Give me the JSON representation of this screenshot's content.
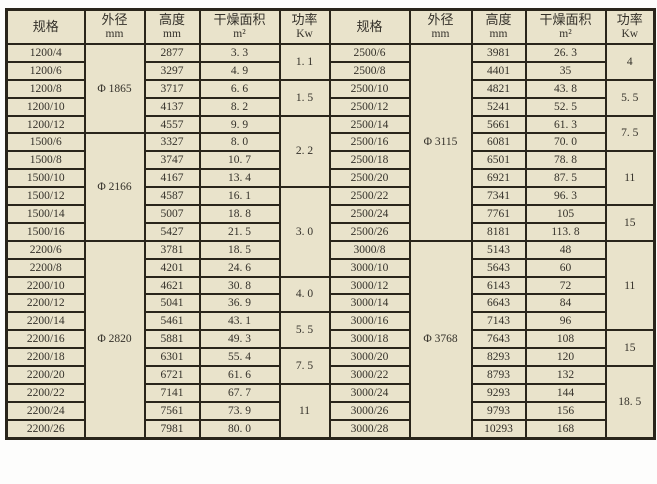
{
  "colors": {
    "cell_background": "#e9e3cb",
    "border": "#29251b",
    "text": "#34312a",
    "page_background": "#fdfdfc"
  },
  "table": {
    "headers": {
      "spec": "规格",
      "diameter": "外径",
      "diameter_unit": "mm",
      "height": "高度",
      "height_unit": "mm",
      "area": "干燥面积",
      "area_unit": "m²",
      "power": "功率",
      "power_unit": "Kw"
    },
    "halves": [
      {
        "rows": [
          {
            "spec": "1200/4",
            "height": "2877",
            "area": "3. 3"
          },
          {
            "spec": "1200/6",
            "height": "3297",
            "area": "4. 9"
          },
          {
            "spec": "1200/8",
            "height": "3717",
            "area": "6. 6"
          },
          {
            "spec": "1200/10",
            "height": "4137",
            "area": "8. 2"
          },
          {
            "spec": "1200/12",
            "height": "4557",
            "area": "9. 9"
          },
          {
            "spec": "1500/6",
            "height": "3327",
            "area": "8. 0"
          },
          {
            "spec": "1500/8",
            "height": "3747",
            "area": "10. 7"
          },
          {
            "spec": "1500/10",
            "height": "4167",
            "area": "13. 4"
          },
          {
            "spec": "1500/12",
            "height": "4587",
            "area": "16. 1"
          },
          {
            "spec": "1500/14",
            "height": "5007",
            "area": "18. 8"
          },
          {
            "spec": "1500/16",
            "height": "5427",
            "area": "21. 5"
          },
          {
            "spec": "2200/6",
            "height": "3781",
            "area": "18. 5"
          },
          {
            "spec": "2200/8",
            "height": "4201",
            "area": "24. 6"
          },
          {
            "spec": "2200/10",
            "height": "4621",
            "area": "30. 8"
          },
          {
            "spec": "2200/12",
            "height": "5041",
            "area": "36. 9"
          },
          {
            "spec": "2200/14",
            "height": "5461",
            "area": "43. 1"
          },
          {
            "spec": "2200/16",
            "height": "5881",
            "area": "49. 3"
          },
          {
            "spec": "2200/18",
            "height": "6301",
            "area": "55. 4"
          },
          {
            "spec": "2200/20",
            "height": "6721",
            "area": "61. 6"
          },
          {
            "spec": "2200/22",
            "height": "7141",
            "area": "67. 7"
          },
          {
            "spec": "2200/24",
            "height": "7561",
            "area": "73. 9"
          },
          {
            "spec": "2200/26",
            "height": "7981",
            "area": "80. 0"
          }
        ],
        "diameter_groups": [
          {
            "label": "Φ 1865",
            "span": 5
          },
          {
            "label": "Φ 2166",
            "span": 6
          },
          {
            "label": "Φ 2820",
            "span": 11
          }
        ],
        "power_groups": [
          {
            "label": "1. 1",
            "span": 2
          },
          {
            "label": "1. 5",
            "span": 2
          },
          {
            "label": "2. 2",
            "span": 4
          },
          {
            "label": "3. 0",
            "span": 5
          },
          {
            "label": "4. 0",
            "span": 2
          },
          {
            "label": "5. 5",
            "span": 2
          },
          {
            "label": "7. 5",
            "span": 2
          },
          {
            "label": "11",
            "span": 3
          }
        ]
      },
      {
        "rows": [
          {
            "spec": "2500/6",
            "height": "3981",
            "area": "26. 3"
          },
          {
            "spec": "2500/8",
            "height": "4401",
            "area": "35"
          },
          {
            "spec": "2500/10",
            "height": "4821",
            "area": "43. 8"
          },
          {
            "spec": "2500/12",
            "height": "5241",
            "area": "52. 5"
          },
          {
            "spec": "2500/14",
            "height": "5661",
            "area": "61. 3"
          },
          {
            "spec": "2500/16",
            "height": "6081",
            "area": "70. 0"
          },
          {
            "spec": "2500/18",
            "height": "6501",
            "area": "78. 8"
          },
          {
            "spec": "2500/20",
            "height": "6921",
            "area": "87. 5"
          },
          {
            "spec": "2500/22",
            "height": "7341",
            "area": "96. 3"
          },
          {
            "spec": "2500/24",
            "height": "7761",
            "area": "105"
          },
          {
            "spec": "2500/26",
            "height": "8181",
            "area": "113. 8"
          },
          {
            "spec": "3000/8",
            "height": "5143",
            "area": "48"
          },
          {
            "spec": "3000/10",
            "height": "5643",
            "area": "60"
          },
          {
            "spec": "3000/12",
            "height": "6143",
            "area": "72"
          },
          {
            "spec": "3000/14",
            "height": "6643",
            "area": "84"
          },
          {
            "spec": "3000/16",
            "height": "7143",
            "area": "96"
          },
          {
            "spec": "3000/18",
            "height": "7643",
            "area": "108"
          },
          {
            "spec": "3000/20",
            "height": "8293",
            "area": "120"
          },
          {
            "spec": "3000/22",
            "height": "8793",
            "area": "132"
          },
          {
            "spec": "3000/24",
            "height": "9293",
            "area": "144"
          },
          {
            "spec": "3000/26",
            "height": "9793",
            "area": "156"
          },
          {
            "spec": "3000/28",
            "height": "10293",
            "area": "168"
          }
        ],
        "diameter_groups": [
          {
            "label": "Φ 3115",
            "span": 11
          },
          {
            "label": "Φ 3768",
            "span": 11
          }
        ],
        "power_groups": [
          {
            "label": "4",
            "span": 2
          },
          {
            "label": "5. 5",
            "span": 2
          },
          {
            "label": "7. 5",
            "span": 2
          },
          {
            "label": "11",
            "span": 3
          },
          {
            "label": "15",
            "span": 2
          },
          {
            "label": "11",
            "span": 5
          },
          {
            "label": "15",
            "span": 2
          },
          {
            "label": "18. 5",
            "span": 4
          }
        ]
      }
    ]
  }
}
